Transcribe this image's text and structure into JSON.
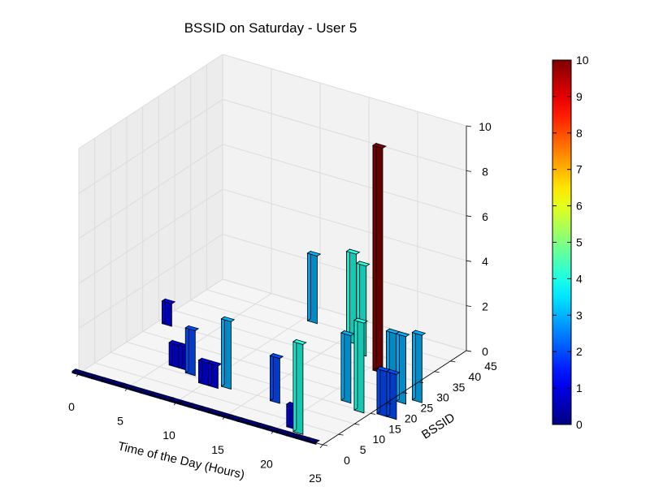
{
  "chart_data": {
    "type": "bar3d",
    "title": "BSSID on Saturday - User 5",
    "xlabel": "Time of the Day (Hours)",
    "ylabel": "BSSID",
    "zlabel": "",
    "xlim": [
      0,
      25
    ],
    "ylim": [
      0,
      45
    ],
    "zlim": [
      0,
      10
    ],
    "x_ticks": [
      "0",
      "5",
      "10",
      "15",
      "20",
      "25"
    ],
    "y_ticks": [
      "0",
      "5",
      "10",
      "15",
      "20",
      "25",
      "30",
      "35",
      "40",
      "45"
    ],
    "z_ticks": [
      "0",
      "2",
      "4",
      "6",
      "8",
      "10"
    ],
    "colormap": "jet",
    "colorbar": {
      "min": 0,
      "max": 10,
      "ticks": [
        "0",
        "1",
        "2",
        "3",
        "4",
        "5",
        "6",
        "7",
        "8",
        "9",
        "10"
      ]
    },
    "grid": true,
    "bars": [
      {
        "hour": 0,
        "bssid": 0,
        "count": 0
      },
      {
        "hour": 1,
        "bssid": 0,
        "count": 0
      },
      {
        "hour": 2,
        "bssid": 0,
        "count": 0
      },
      {
        "hour": 3,
        "bssid": 0,
        "count": 0
      },
      {
        "hour": 4,
        "bssid": 0,
        "count": 0
      },
      {
        "hour": 5,
        "bssid": 0,
        "count": 0
      },
      {
        "hour": 6,
        "bssid": 0,
        "count": 0
      },
      {
        "hour": 7,
        "bssid": 0,
        "count": 0
      },
      {
        "hour": 8,
        "bssid": 0,
        "count": 0
      },
      {
        "hour": 9,
        "bssid": 0,
        "count": 0
      },
      {
        "hour": 10,
        "bssid": 0,
        "count": 0
      },
      {
        "hour": 11,
        "bssid": 0,
        "count": 0
      },
      {
        "hour": 12,
        "bssid": 0,
        "count": 0
      },
      {
        "hour": 13,
        "bssid": 0,
        "count": 0
      },
      {
        "hour": 14,
        "bssid": 0,
        "count": 0
      },
      {
        "hour": 15,
        "bssid": 0,
        "count": 0
      },
      {
        "hour": 16,
        "bssid": 0,
        "count": 0
      },
      {
        "hour": 17,
        "bssid": 0,
        "count": 0
      },
      {
        "hour": 18,
        "bssid": 0,
        "count": 0
      },
      {
        "hour": 19,
        "bssid": 0,
        "count": 0
      },
      {
        "hour": 20,
        "bssid": 0,
        "count": 0
      },
      {
        "hour": 21,
        "bssid": 0,
        "count": 0
      },
      {
        "hour": 22,
        "bssid": 0,
        "count": 0
      },
      {
        "hour": 23,
        "bssid": 0,
        "count": 0
      },
      {
        "hour": 24,
        "bssid": 0,
        "count": 0
      },
      {
        "hour": 1,
        "bssid": 25,
        "count": 1
      },
      {
        "hour": 6,
        "bssid": 12,
        "count": 1
      },
      {
        "hour": 7,
        "bssid": 12,
        "count": 1
      },
      {
        "hour": 8,
        "bssid": 11,
        "count": 2
      },
      {
        "hour": 10,
        "bssid": 9,
        "count": 1
      },
      {
        "hour": 11,
        "bssid": 9,
        "count": 1
      },
      {
        "hour": 12,
        "bssid": 10,
        "count": 3
      },
      {
        "hour": 17,
        "bssid": 10,
        "count": 2
      },
      {
        "hour": 21,
        "bssid": 3,
        "count": 1
      },
      {
        "hour": 22,
        "bssid": 2,
        "count": 4
      },
      {
        "hour": 11,
        "bssid": 40,
        "count": 3
      },
      {
        "hour": 16,
        "bssid": 37,
        "count": 4
      },
      {
        "hour": 18,
        "bssid": 34,
        "count": 4
      },
      {
        "hour": 24,
        "bssid": 15,
        "count": 4
      },
      {
        "hour": 21,
        "bssid": 30,
        "count": 10
      },
      {
        "hour": 22,
        "bssid": 17,
        "count": 3
      },
      {
        "hour": 25,
        "bssid": 22,
        "count": 3
      },
      {
        "hour": 26,
        "bssid": 22,
        "count": 3
      },
      {
        "hour": 27,
        "bssid": 24,
        "count": 3
      },
      {
        "hour": 26,
        "bssid": 16,
        "count": 2
      },
      {
        "hour": 27,
        "bssid": 16,
        "count": 2
      }
    ]
  }
}
